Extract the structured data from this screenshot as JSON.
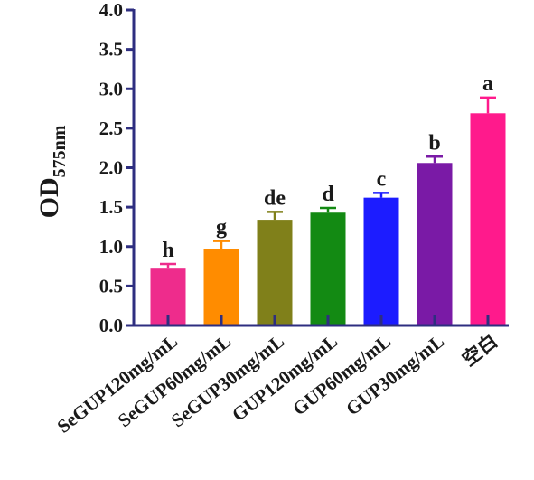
{
  "chart_data": {
    "type": "bar",
    "ylabel": "OD",
    "ylabel_subscript": "575nm",
    "ylim": [
      0,
      4.0
    ],
    "ytick_step": 0.5,
    "yticks": [
      "0.0",
      "0.5",
      "1.0",
      "1.5",
      "2.0",
      "2.5",
      "3.0",
      "3.5",
      "4.0"
    ],
    "grid": false,
    "legend": "none",
    "categories": [
      "SeGUP120mg/mL",
      "SeGUP60mg/mL",
      "SeGUP30mg/mL",
      "GUP120mg/mL",
      "GUP60mg/mL",
      "GUP30mg/mL",
      "空白"
    ],
    "values": [
      0.72,
      0.97,
      1.34,
      1.43,
      1.62,
      2.06,
      2.69
    ],
    "errors": [
      0.06,
      0.1,
      0.1,
      0.06,
      0.06,
      0.08,
      0.2
    ],
    "significance": [
      "h",
      "g",
      "de",
      "d",
      "c",
      "b",
      "a"
    ],
    "colors": [
      "#ee2c8c",
      "#ff8c00",
      "#80801a",
      "#138a13",
      "#1c1cff",
      "#7a1aa6",
      "#ff1a8c"
    ],
    "axis_color": "#2e2e80"
  }
}
